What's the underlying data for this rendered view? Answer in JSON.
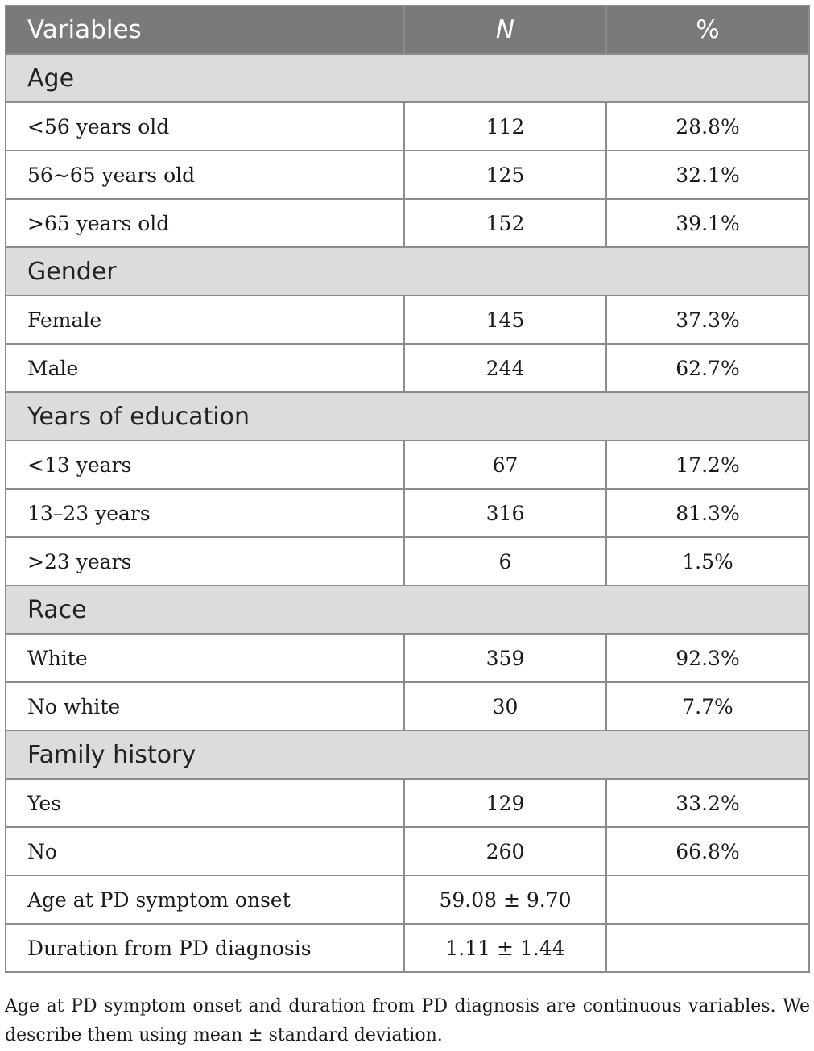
{
  "header": {
    "variables": "Variables",
    "n": "N",
    "pct": "%"
  },
  "sections": [
    {
      "title": "Age",
      "rows": [
        {
          "label": "<56 years old",
          "n": "112",
          "pct": "28.8%"
        },
        {
          "label": "56∼65 years old",
          "n": "125",
          "pct": "32.1%"
        },
        {
          "label": ">65 years old",
          "n": "152",
          "pct": "39.1%"
        }
      ]
    },
    {
      "title": "Gender",
      "rows": [
        {
          "label": "Female",
          "n": "145",
          "pct": "37.3%"
        },
        {
          "label": "Male",
          "n": "244",
          "pct": "62.7%"
        }
      ]
    },
    {
      "title": "Years of education",
      "rows": [
        {
          "label": "<13 years",
          "n": "67",
          "pct": "17.2%"
        },
        {
          "label": "13–23 years",
          "n": "316",
          "pct": "81.3%"
        },
        {
          "label": ">23 years",
          "n": "6",
          "pct": "1.5%"
        }
      ]
    },
    {
      "title": "Race",
      "rows": [
        {
          "label": "White",
          "n": "359",
          "pct": "92.3%"
        },
        {
          "label": "No white",
          "n": "30",
          "pct": "7.7%"
        }
      ]
    },
    {
      "title": "Family history",
      "rows": [
        {
          "label": "Yes",
          "n": "129",
          "pct": "33.2%"
        },
        {
          "label": "No",
          "n": "260",
          "pct": "66.8%"
        }
      ]
    }
  ],
  "continuous": [
    {
      "label": "Age at PD symptom onset",
      "n": "59.08 ± 9.70",
      "pct": ""
    },
    {
      "label": "Duration from PD diagnosis",
      "n": "1.11 ± 1.44",
      "pct": ""
    }
  ],
  "footnote": "Age at PD symptom onset and duration from PD diagnosis are continuous variables. We describe them using mean ± standard deviation."
}
